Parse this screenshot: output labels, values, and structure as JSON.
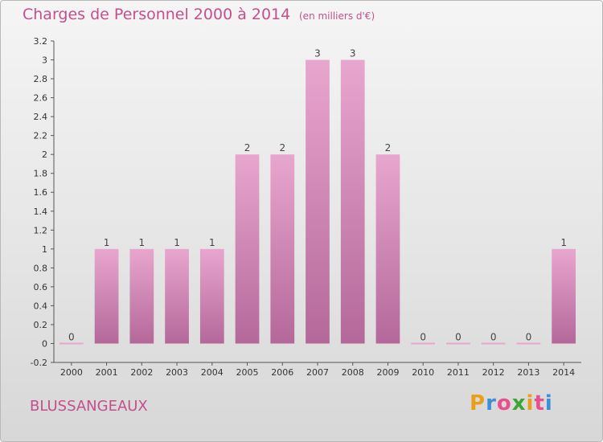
{
  "header": {
    "title": "Charges de Personnel 2000 à 2014",
    "unit": "(en milliers d'€)"
  },
  "footer": {
    "commune": "BLUSSANGEAUX",
    "logo_letters": [
      "P",
      "r",
      "o",
      "x",
      "i",
      "t",
      "i"
    ],
    "logo_colors": [
      "#e8a01a",
      "#3a8fd6",
      "#e94f8b",
      "#3aa635",
      "#e8a01a",
      "#e94f8b",
      "#3a8fd6"
    ]
  },
  "colors": {
    "title": "#c44f8e",
    "bar_top": "#e8a6ce",
    "bar_bottom": "#b4689a",
    "axis_text": "#333333"
  },
  "chart_data": {
    "type": "bar",
    "title": "Charges de Personnel 2000 à 2014",
    "subtitle": "(en milliers d'€)",
    "categories": [
      "2000",
      "2001",
      "2002",
      "2003",
      "2004",
      "2005",
      "2006",
      "2007",
      "2008",
      "2009",
      "2010",
      "2011",
      "2012",
      "2013",
      "2014"
    ],
    "values": [
      0,
      1,
      1,
      1,
      1,
      2,
      2,
      3,
      3,
      2,
      0,
      0,
      0,
      0,
      1
    ],
    "data_labels": [
      "0",
      "1",
      "1",
      "1",
      "1",
      "2",
      "2",
      "3",
      "3",
      "2",
      "0",
      "0",
      "0",
      "0",
      "1"
    ],
    "ylim": [
      -0.2,
      3.2
    ],
    "yticks": [
      -0.2,
      0,
      0.2,
      0.4,
      0.6,
      0.8,
      1,
      1.2,
      1.4,
      1.6,
      1.8,
      2,
      2.2,
      2.4,
      2.6,
      2.8,
      3,
      3.2
    ],
    "ytick_labels": [
      "-0.2",
      "0",
      "0.2",
      "0.4",
      "0.6",
      "0.8",
      "1",
      "1.2",
      "1.4",
      "1.6",
      "1.8",
      "2",
      "2.2",
      "2.4",
      "2.6",
      "2.8",
      "3",
      "3.2"
    ],
    "xlabel": "",
    "ylabel": "",
    "grid": false,
    "legend": "none"
  }
}
